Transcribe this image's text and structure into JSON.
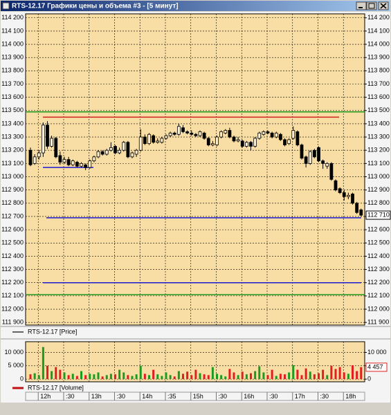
{
  "window": {
    "title": "RTS-12.17 Графики цены и объема #3 - [5 минут]"
  },
  "chart_data": [
    {
      "type": "candlestick",
      "legend": "RTS-12.17 [Price]",
      "categories": [
        null,
        null,
        "12h",
        null,
        null,
        null,
        null,
        null,
        ":30",
        null,
        null,
        null,
        null,
        null,
        "13h",
        null,
        null,
        null,
        null,
        null,
        ":30",
        null,
        null,
        null,
        null,
        null,
        "14h",
        null,
        null,
        null,
        null,
        null,
        ":35",
        null,
        null,
        null,
        null,
        null,
        "15h",
        null,
        null,
        null,
        null,
        null,
        ":30",
        null,
        null,
        null,
        null,
        null,
        "16h",
        null,
        null,
        null,
        null,
        null,
        ":30",
        null,
        null,
        null,
        null,
        null,
        "17h",
        null,
        null,
        null,
        null,
        null,
        ":30",
        null,
        null,
        null,
        null,
        null,
        "18h",
        null,
        null,
        null,
        null
      ],
      "ohlc": [
        [
          113200,
          113220,
          113080,
          113090
        ],
        [
          113100,
          113170,
          113090,
          113150
        ],
        [
          113150,
          113200,
          113130,
          113180
        ],
        [
          113180,
          113410,
          113150,
          113390
        ],
        [
          113390,
          113420,
          113210,
          113230
        ],
        [
          113230,
          113310,
          113220,
          113290
        ],
        [
          113290,
          113300,
          113140,
          113150
        ],
        [
          113160,
          113190,
          113090,
          113110
        ],
        [
          113110,
          113150,
          113100,
          113130
        ],
        [
          113130,
          113150,
          113080,
          113090
        ],
        [
          113090,
          113130,
          113080,
          113120
        ],
        [
          113110,
          113120,
          113070,
          113080
        ],
        [
          113080,
          113110,
          113070,
          113100
        ],
        [
          113090,
          113100,
          113050,
          113070
        ],
        [
          113070,
          113130,
          113060,
          113120
        ],
        [
          113120,
          113160,
          113110,
          113150
        ],
        [
          113150,
          113200,
          113140,
          113190
        ],
        [
          113190,
          113200,
          113160,
          113170
        ],
        [
          113170,
          113210,
          113160,
          113200
        ],
        [
          113200,
          113260,
          113190,
          113220
        ],
        [
          113230,
          113240,
          113170,
          113180
        ],
        [
          113180,
          113220,
          113170,
          113200
        ],
        [
          113200,
          113270,
          113190,
          113260
        ],
        [
          113260,
          113270,
          113140,
          113150
        ],
        [
          113150,
          113190,
          113140,
          113180
        ],
        [
          113170,
          113210,
          113150,
          113200
        ],
        [
          113200,
          113360,
          113190,
          113300
        ],
        [
          113300,
          113320,
          113240,
          113250
        ],
        [
          113250,
          113330,
          113240,
          113320
        ],
        [
          113310,
          113320,
          113250,
          113260
        ],
        [
          113260,
          113290,
          113250,
          113270
        ],
        [
          113260,
          113300,
          113250,
          113290
        ],
        [
          113290,
          113320,
          113280,
          113310
        ],
        [
          113310,
          113340,
          113300,
          113330
        ],
        [
          113330,
          113340,
          113310,
          113320
        ],
        [
          113320,
          113400,
          113310,
          113380
        ],
        [
          113370,
          113390,
          113330,
          113340
        ],
        [
          113340,
          113350,
          113320,
          113330
        ],
        [
          113330,
          113350,
          113310,
          113320
        ],
        [
          113320,
          113330,
          113300,
          113310
        ],
        [
          113310,
          113350,
          113300,
          113340
        ],
        [
          113330,
          113340,
          113280,
          113290
        ],
        [
          113290,
          113300,
          113230,
          113240
        ],
        [
          113240,
          113270,
          113230,
          113250
        ],
        [
          113240,
          113310,
          113230,
          113300
        ],
        [
          113300,
          113350,
          113290,
          113340
        ],
        [
          113330,
          113360,
          113320,
          113350
        ],
        [
          113350,
          113370,
          113290,
          113300
        ],
        [
          113300,
          113310,
          113260,
          113270
        ],
        [
          113270,
          113300,
          113260,
          113280
        ],
        [
          113270,
          113280,
          113220,
          113230
        ],
        [
          113230,
          113270,
          113220,
          113260
        ],
        [
          113260,
          113270,
          113200,
          113230
        ],
        [
          113230,
          113300,
          113220,
          113290
        ],
        [
          113290,
          113340,
          113280,
          113330
        ],
        [
          113320,
          113350,
          113310,
          113340
        ],
        [
          113340,
          113350,
          113320,
          113330
        ],
        [
          113330,
          113340,
          113290,
          113300
        ],
        [
          113300,
          113340,
          113290,
          113330
        ],
        [
          113320,
          113330,
          113270,
          113280
        ],
        [
          113280,
          113290,
          113230,
          113240
        ],
        [
          113250,
          113290,
          113240,
          113280
        ],
        [
          113290,
          113380,
          113280,
          113350
        ],
        [
          113340,
          113350,
          113230,
          113240
        ],
        [
          113240,
          113250,
          113130,
          113140
        ],
        [
          113150,
          113160,
          113070,
          113100
        ],
        [
          113100,
          113200,
          113090,
          113190
        ],
        [
          113200,
          113210,
          113140,
          113150
        ],
        [
          113220,
          113230,
          113110,
          113120
        ],
        [
          113120,
          113130,
          113060,
          113100
        ],
        [
          113080,
          113110,
          113060,
          113100
        ],
        [
          113100,
          113110,
          112970,
          112980
        ],
        [
          112970,
          112980,
          112890,
          112900
        ],
        [
          112910,
          112920,
          112870,
          112880
        ],
        [
          112880,
          112900,
          112820,
          112850
        ],
        [
          112850,
          112880,
          112830,
          112860
        ],
        [
          112870,
          112880,
          112790,
          112800
        ],
        [
          112800,
          112810,
          112720,
          112730
        ],
        [
          112750,
          112760,
          112700,
          112710
        ]
      ],
      "up_fill": "#fdf0d0",
      "down_fill": "#000000",
      "background": "#f8dea4",
      "ylim": [
        111880,
        114230
      ],
      "yticks": [
        {
          "value": 111900,
          "label": "111 900"
        },
        {
          "value": 112000,
          "label": "112 000"
        },
        {
          "value": 112100,
          "label": "112 100"
        },
        {
          "value": 112200,
          "label": "112 200"
        },
        {
          "value": 112300,
          "label": "112 300"
        },
        {
          "value": 112400,
          "label": "112 400"
        },
        {
          "value": 112500,
          "label": "112 500"
        },
        {
          "value": 112600,
          "label": "112 600"
        },
        {
          "value": 112700,
          "label": "112 700"
        },
        {
          "value": 112800,
          "label": "112 800"
        },
        {
          "value": 112900,
          "label": "112 900"
        },
        {
          "value": 113000,
          "label": "113 000"
        },
        {
          "value": 113100,
          "label": "113 100"
        },
        {
          "value": 113200,
          "label": "113 200"
        },
        {
          "value": 113300,
          "label": "113 300"
        },
        {
          "value": 113400,
          "label": "113 400"
        },
        {
          "value": 113500,
          "label": "113 500"
        },
        {
          "value": 113600,
          "label": "113 600"
        },
        {
          "value": 113700,
          "label": "113 700"
        },
        {
          "value": 113800,
          "label": "113 800"
        },
        {
          "value": 113900,
          "label": "113 900"
        },
        {
          "value": 114000,
          "label": "114 000"
        },
        {
          "value": 114100,
          "label": "114 100"
        },
        {
          "value": 114200,
          "label": "114 200"
        }
      ],
      "grid": true,
      "last_price": {
        "value": 112710,
        "label": "112 710"
      },
      "levels": [
        {
          "value": 113490,
          "color": "#1a9a1a"
        },
        {
          "value": 113450,
          "color": "#d02020"
        },
        {
          "value": 113070,
          "color": "#1a1ad0"
        },
        {
          "value": 112690,
          "color": "#1a1ad0"
        },
        {
          "value": 112200,
          "color": "#1a1ad0"
        },
        {
          "value": 112110,
          "color": "#1a9a1a"
        }
      ]
    },
    {
      "type": "volume",
      "legend": "RTS-12.17 [Volume]",
      "legend_color": "#c01010",
      "values": [
        1800,
        2200,
        1500,
        12000,
        5000,
        3000,
        4500,
        3500,
        2500,
        1500,
        2000,
        1200,
        3000,
        1500,
        2000,
        1800,
        2500,
        1000,
        1500,
        2000,
        1800,
        3500,
        2500,
        1500,
        1200,
        1800,
        5000,
        2000,
        1500,
        3500,
        1800,
        1200,
        2500,
        1500,
        1000,
        3000,
        2000,
        2800,
        1500,
        3500,
        2200,
        1800,
        1500,
        4500,
        2000,
        1500,
        1000,
        3800,
        2500,
        1500,
        2800,
        1800,
        2200,
        3000,
        4800,
        2500,
        1500,
        3500,
        1200,
        2000,
        1800,
        2500,
        5200,
        3500,
        1500,
        4000,
        2800,
        1800,
        2200,
        3500,
        1500,
        5000,
        3800,
        4500,
        2500,
        2000,
        5200,
        3000,
        4457
      ],
      "up_color": "#1e9a1e",
      "down_color": "#e02020",
      "ylim": [
        -1000,
        14000
      ],
      "yticks": [
        0,
        {
          "value": 5000,
          "label": "5 000"
        },
        {
          "value": 10000,
          "label": "10 000"
        }
      ],
      "grid": true,
      "last_value": {
        "value": 4457,
        "label": "4 457"
      }
    }
  ]
}
